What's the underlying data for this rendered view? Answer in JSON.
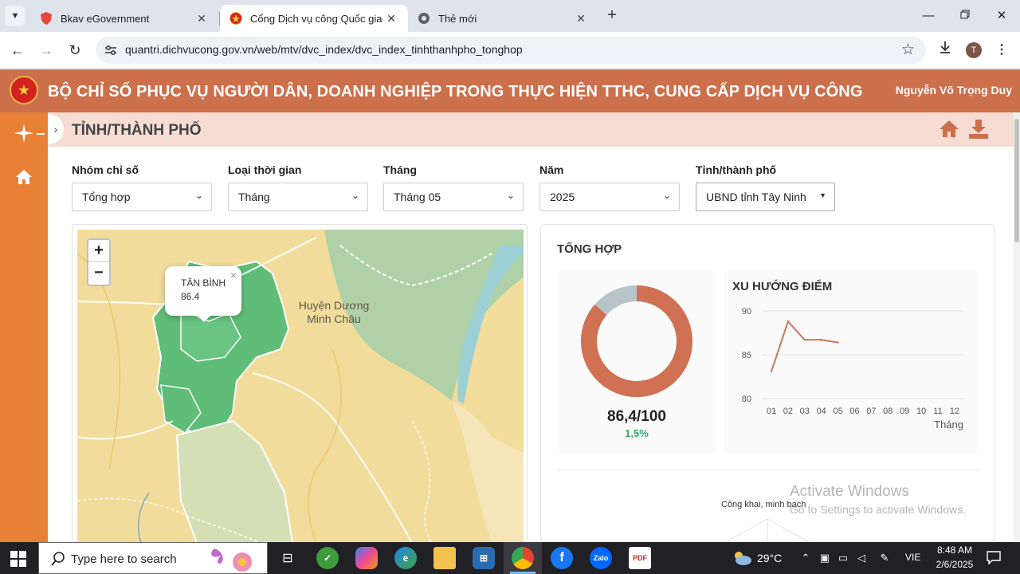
{
  "browser": {
    "tabs": [
      {
        "title": "Bkav eGovernment",
        "icon": "shield-icon",
        "active": false
      },
      {
        "title": "Cổng Dịch vụ công Quốc gia",
        "icon": "emblem-icon",
        "active": true
      },
      {
        "title": "Thẻ mới",
        "icon": "chrome-icon",
        "active": false
      }
    ],
    "url": "quantri.dichvucong.gov.vn/web/mtv/dvc_index/dvc_index_tinhthanhpho_tonghop",
    "profile_initial": "T"
  },
  "header": {
    "title": "BỘ CHỈ SỐ PHỤC VỤ NGƯỜI DÂN, DOANH NGHIỆP TRONG THỰC HIỆN TTHC, CUNG CẤP DỊCH VỤ CÔNG",
    "user": "Nguyễn Võ Trọng Duy"
  },
  "page": {
    "title": "TỈNH/THÀNH PHỐ"
  },
  "filters": [
    {
      "label": "Nhóm chỉ số",
      "value": "Tổng hợp"
    },
    {
      "label": "Loại thời gian",
      "value": "Tháng"
    },
    {
      "label": "Tháng",
      "value": "Tháng 05"
    },
    {
      "label": "Năm",
      "value": "2025"
    },
    {
      "label": "Tỉnh/thành phố",
      "value": "UBND tỉnh Tây Ninh"
    }
  ],
  "map": {
    "zoom_in": "+",
    "zoom_out": "−",
    "popup_name": "TÂN BÌNH",
    "popup_value": "86.4",
    "place_label_1": "Huyện Dương",
    "place_label_2": "Minh Châu"
  },
  "summary": {
    "title": "TỔNG HỢP",
    "score": "86,4/100",
    "change": "1,5%",
    "donut_value": 86.4,
    "donut_max": 100,
    "trend_title": "XU HƯỚNG ĐIỂM",
    "radar_label": "Công khai, minh bạch"
  },
  "chart_data": {
    "type": "line",
    "title": "XU HƯỚNG ĐIỂM",
    "xlabel": "Tháng",
    "ylabel": "",
    "categories": [
      "01",
      "02",
      "03",
      "04",
      "05",
      "06",
      "07",
      "08",
      "09",
      "10",
      "11",
      "12"
    ],
    "series": [
      {
        "values": [
          83.1,
          88.8,
          86.7,
          86.7,
          86.4,
          null,
          null,
          null,
          null,
          null,
          null,
          null
        ]
      }
    ],
    "yticks": [
      80,
      85,
      90
    ],
    "ylim": [
      80,
      90
    ],
    "grid": true,
    "line_color": "#c8765a"
  },
  "watermark": {
    "line1": "Activate Windows",
    "line2": "Go to Settings to activate Windows."
  },
  "taskbar": {
    "search_placeholder": "Type here to search",
    "weather": "29°C",
    "lang": "VIE",
    "time": "8:48 AM",
    "date": "2/6/2025"
  },
  "colors": {
    "header": "#cc6f4b",
    "sidebar": "#e88136",
    "donut_main": "#cf7152",
    "donut_rest": "#b8c4c8",
    "positive": "#3aa46d"
  }
}
